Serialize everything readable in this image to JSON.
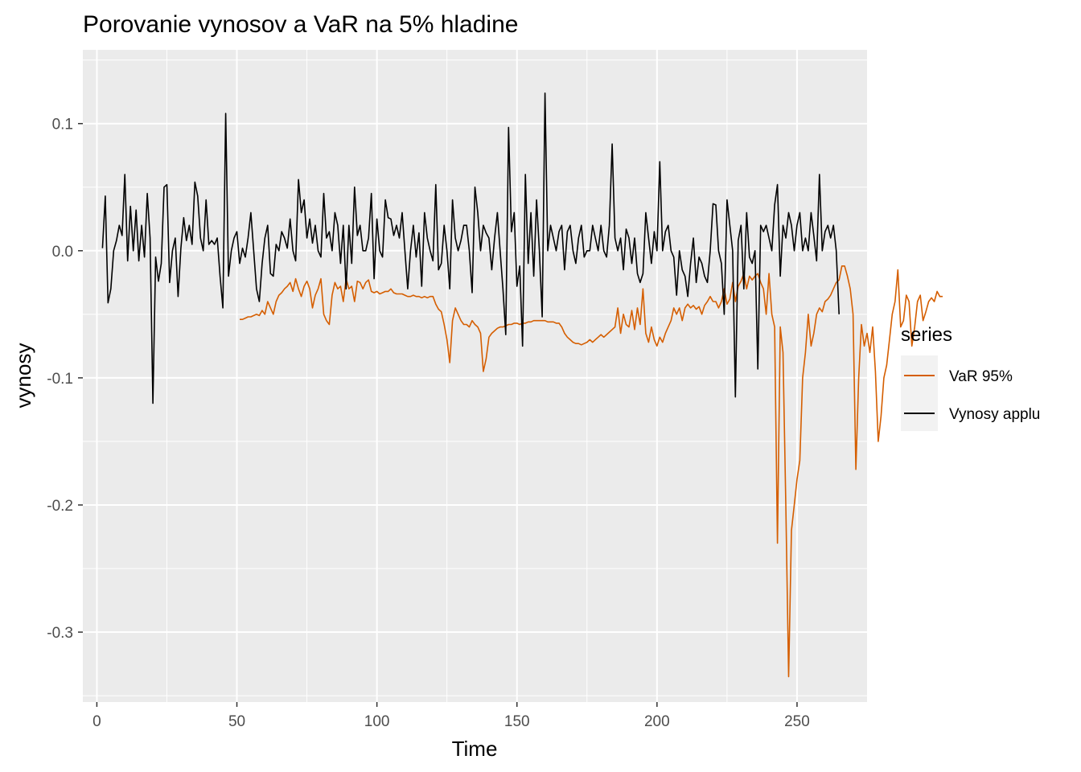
{
  "chart_data": {
    "type": "line",
    "title": "Porovanie vynosov a VaR na 5% hladine",
    "xlabel": "Time",
    "ylabel": "vynosy",
    "xlim": [
      -5,
      275
    ],
    "ylim": [
      -0.355,
      0.158
    ],
    "x_ticks": [
      0,
      50,
      100,
      150,
      200,
      250
    ],
    "x_tick_labels": [
      "0",
      "50",
      "100",
      "150",
      "200",
      "250"
    ],
    "y_ticks": [
      -0.3,
      -0.2,
      -0.1,
      0.0,
      0.1
    ],
    "y_tick_labels": [
      "-0.3",
      "-0.2",
      "-0.1",
      "0.0",
      "0.1"
    ],
    "grid": true,
    "legend": {
      "title": "series",
      "position": "right",
      "entries": [
        "VaR 95%",
        "Vynosy applu"
      ]
    },
    "series": [
      {
        "name": "VaR 95%",
        "color": "#d55e00",
        "x_start": 51,
        "values": [
          -0.054,
          -0.054,
          -0.053,
          -0.052,
          -0.052,
          -0.051,
          -0.05,
          -0.051,
          -0.047,
          -0.05,
          -0.04,
          -0.045,
          -0.05,
          -0.04,
          -0.035,
          -0.033,
          -0.03,
          -0.028,
          -0.025,
          -0.032,
          -0.022,
          -0.03,
          -0.036,
          -0.028,
          -0.024,
          -0.03,
          -0.045,
          -0.035,
          -0.03,
          -0.022,
          -0.05,
          -0.055,
          -0.058,
          -0.035,
          -0.025,
          -0.03,
          -0.028,
          -0.04,
          -0.022,
          -0.03,
          -0.028,
          -0.04,
          -0.024,
          -0.025,
          -0.03,
          -0.025,
          -0.023,
          -0.032,
          -0.033,
          -0.032,
          -0.034,
          -0.033,
          -0.032,
          -0.032,
          -0.03,
          -0.033,
          -0.034,
          -0.034,
          -0.034,
          -0.035,
          -0.036,
          -0.036,
          -0.035,
          -0.036,
          -0.036,
          -0.037,
          -0.036,
          -0.037,
          -0.036,
          -0.036,
          -0.042,
          -0.046,
          -0.048,
          -0.058,
          -0.07,
          -0.088,
          -0.055,
          -0.045,
          -0.05,
          -0.055,
          -0.058,
          -0.058,
          -0.06,
          -0.055,
          -0.058,
          -0.06,
          -0.065,
          -0.095,
          -0.085,
          -0.068,
          -0.065,
          -0.063,
          -0.061,
          -0.06,
          -0.06,
          -0.059,
          -0.058,
          -0.058,
          -0.057,
          -0.057,
          -0.058,
          -0.057,
          -0.057,
          -0.056,
          -0.056,
          -0.055,
          -0.055,
          -0.055,
          -0.055,
          -0.055,
          -0.056,
          -0.056,
          -0.056,
          -0.057,
          -0.057,
          -0.06,
          -0.065,
          -0.068,
          -0.07,
          -0.072,
          -0.073,
          -0.073,
          -0.074,
          -0.073,
          -0.072,
          -0.07,
          -0.072,
          -0.07,
          -0.068,
          -0.066,
          -0.068,
          -0.066,
          -0.064,
          -0.062,
          -0.06,
          -0.045,
          -0.065,
          -0.05,
          -0.058,
          -0.06,
          -0.047,
          -0.062,
          -0.045,
          -0.058,
          -0.03,
          -0.065,
          -0.072,
          -0.06,
          -0.07,
          -0.075,
          -0.068,
          -0.072,
          -0.065,
          -0.06,
          -0.055,
          -0.045,
          -0.05,
          -0.045,
          -0.055,
          -0.045,
          -0.042,
          -0.045,
          -0.043,
          -0.046,
          -0.044,
          -0.05,
          -0.043,
          -0.04,
          -0.036,
          -0.04,
          -0.04,
          -0.045,
          -0.04,
          -0.03,
          -0.042,
          -0.038,
          -0.025,
          -0.04,
          -0.028,
          -0.024,
          -0.018,
          -0.03,
          -0.02,
          -0.023,
          -0.02,
          -0.018,
          -0.025,
          -0.03,
          -0.05,
          -0.018,
          -0.05,
          -0.06,
          -0.23,
          -0.06,
          -0.08,
          -0.2,
          -0.335,
          -0.22,
          -0.2,
          -0.18,
          -0.165,
          -0.1,
          -0.08,
          -0.05,
          -0.075,
          -0.065,
          -0.05,
          -0.045,
          -0.048,
          -0.04,
          -0.038,
          -0.035,
          -0.03,
          -0.025,
          -0.023,
          -0.012,
          -0.012,
          -0.02,
          -0.03,
          -0.05,
          -0.172,
          -0.1,
          -0.058,
          -0.075,
          -0.065,
          -0.08,
          -0.06,
          -0.095,
          -0.15,
          -0.13,
          -0.1,
          -0.09,
          -0.07,
          -0.05,
          -0.04,
          -0.015,
          -0.06,
          -0.055,
          -0.035,
          -0.04,
          -0.075,
          -0.06,
          -0.04,
          -0.035,
          -0.055,
          -0.048,
          -0.04,
          -0.037,
          -0.04,
          -0.032,
          -0.036,
          -0.036
        ]
      },
      {
        "name": "Vynosy applu",
        "color": "#000000",
        "x_start": 2,
        "values": [
          0.002,
          0.043,
          -0.041,
          -0.03,
          0.0,
          0.008,
          0.02,
          0.012,
          0.06,
          -0.008,
          0.035,
          0.0,
          0.032,
          -0.008,
          0.02,
          -0.005,
          0.045,
          0.01,
          -0.12,
          -0.005,
          -0.024,
          -0.01,
          0.05,
          0.052,
          -0.025,
          0.0,
          0.01,
          -0.036,
          0.002,
          0.026,
          0.008,
          0.02,
          0.005,
          0.054,
          0.043,
          0.01,
          0.0,
          0.04,
          0.005,
          0.008,
          0.005,
          0.01,
          -0.02,
          -0.045,
          0.108,
          -0.02,
          0.0,
          0.01,
          0.015,
          -0.01,
          0.002,
          -0.005,
          0.01,
          0.03,
          0.0,
          -0.03,
          -0.04,
          -0.01,
          0.01,
          0.02,
          -0.018,
          -0.02,
          0.005,
          0.0,
          0.015,
          0.01,
          0.002,
          0.025,
          0.0,
          -0.008,
          0.056,
          0.03,
          0.04,
          0.01,
          0.025,
          0.006,
          0.02,
          0.0,
          -0.005,
          0.045,
          0.01,
          0.015,
          0.0,
          0.03,
          0.02,
          -0.01,
          0.02,
          -0.03,
          0.02,
          -0.01,
          0.05,
          0.012,
          0.02,
          0.0,
          0.0,
          0.01,
          0.045,
          -0.022,
          0.025,
          0.0,
          -0.005,
          0.04,
          0.026,
          0.025,
          0.012,
          0.02,
          0.01,
          0.03,
          0.0,
          -0.03,
          0.0,
          0.02,
          -0.005,
          0.014,
          -0.028,
          0.03,
          0.01,
          0.0,
          -0.008,
          0.052,
          -0.015,
          -0.01,
          0.02,
          0.0,
          -0.03,
          0.04,
          0.01,
          0.0,
          0.008,
          0.02,
          0.02,
          0.0,
          -0.033,
          0.05,
          0.03,
          0.0,
          0.02,
          0.014,
          0.01,
          -0.015,
          0.01,
          0.03,
          0.0,
          -0.03,
          -0.066,
          0.097,
          0.015,
          0.03,
          -0.028,
          -0.012,
          -0.075,
          0.06,
          -0.01,
          0.03,
          -0.02,
          0.04,
          0.0,
          -0.052,
          0.124,
          0.0,
          0.02,
          0.01,
          0.0,
          0.015,
          0.02,
          -0.015,
          0.015,
          0.02,
          0.0,
          -0.01,
          0.01,
          0.02,
          -0.005,
          0.0,
          0.0,
          0.02,
          0.01,
          0.0,
          0.02,
          0.0,
          -0.005,
          0.02,
          0.084,
          0.01,
          0.0,
          0.01,
          -0.015,
          0.017,
          0.01,
          -0.01,
          0.01,
          -0.018,
          -0.025,
          -0.018,
          0.03,
          0.01,
          -0.01,
          0.015,
          0.0,
          0.07,
          0.0,
          0.015,
          0.02,
          0.0,
          -0.005,
          -0.035,
          0.0,
          -0.015,
          -0.02,
          -0.036,
          -0.01,
          0.01,
          -0.025,
          -0.005,
          -0.01,
          -0.02,
          -0.025,
          0.0,
          0.037,
          0.036,
          0.0,
          -0.01,
          -0.05,
          0.04,
          0.02,
          0.0,
          -0.115,
          0.008,
          0.02,
          -0.03,
          0.03,
          -0.005,
          -0.01,
          0.0,
          -0.093,
          0.02,
          0.015,
          0.02,
          0.01,
          0.0,
          0.036,
          0.052,
          -0.02,
          0.02,
          0.01,
          0.03,
          0.02,
          0.0,
          0.02,
          0.03,
          0.0,
          0.01,
          0.0,
          0.03,
          0.012,
          -0.008,
          0.06,
          0.0,
          0.015,
          0.02,
          0.01,
          0.02,
          0.0,
          -0.05
        ]
      }
    ]
  }
}
